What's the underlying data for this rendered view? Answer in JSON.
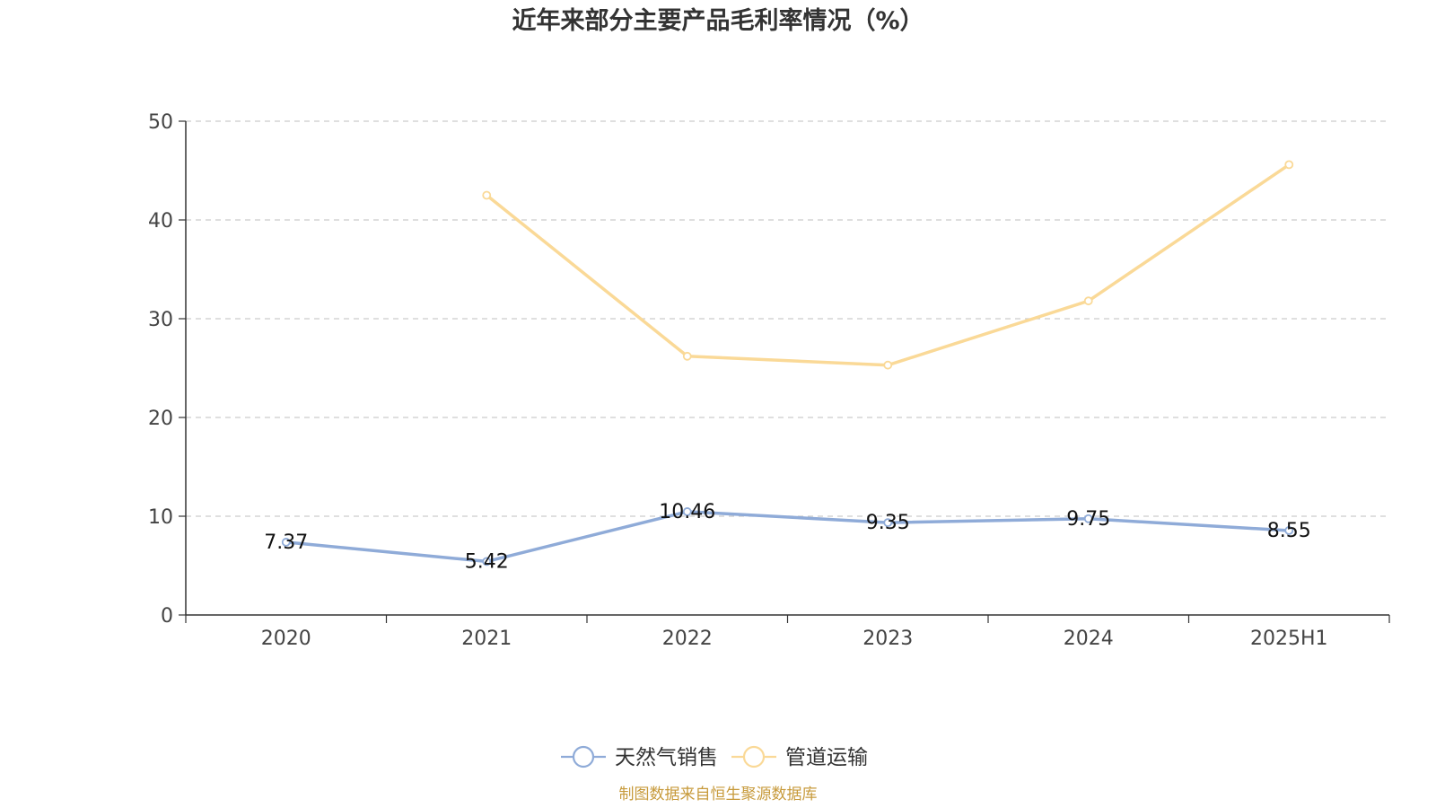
{
  "chart_data": {
    "type": "line",
    "title": "近年来部分主要产品毛利率情况（%）",
    "categories": [
      "2020",
      "2021",
      "2022",
      "2023",
      "2024",
      "2025H1"
    ],
    "ylim": [
      0,
      50
    ],
    "yticks": [
      "0",
      "10",
      "20",
      "30",
      "40",
      "50"
    ],
    "grid": true,
    "legend_position": "bottom-center",
    "series": [
      {
        "name": "天然气销售",
        "color": "#8fabd8",
        "values": [
          7.37,
          5.42,
          10.46,
          9.35,
          9.75,
          8.55
        ],
        "labels": [
          "7.37",
          "5.42",
          "10.46",
          "9.35",
          "9.75",
          "8.55"
        ]
      },
      {
        "name": "管道运输",
        "color": "#fad997",
        "values": [
          null,
          42.5,
          26.2,
          25.3,
          31.8,
          45.6
        ],
        "labels": []
      }
    ]
  },
  "source_note": "制图数据来自恒生聚源数据库"
}
